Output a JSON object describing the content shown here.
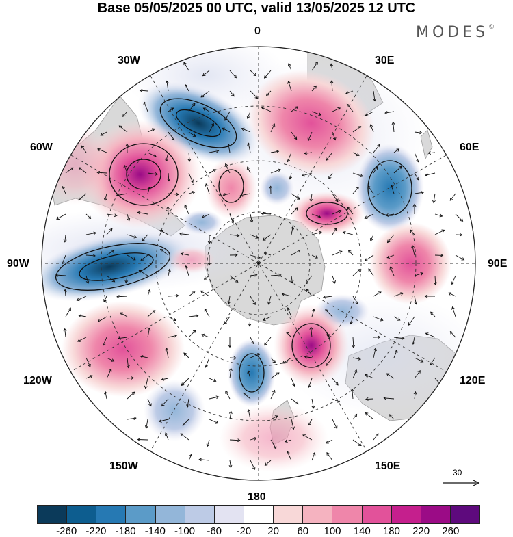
{
  "title": "Base 05/05/2025 00 UTC, valid 13/05/2025 12 UTC",
  "brand": "MODES",
  "brand_mark": "©",
  "labels": {
    "top": "0",
    "bottom": "180",
    "left": "90W",
    "right": "90E",
    "tl30": "30W",
    "tr30": "30E",
    "tl60": "60W",
    "tr60": "60E",
    "bl120": "120W",
    "br120": "120E",
    "bl150": "150W",
    "br150": "150E"
  },
  "reference_vector": "30",
  "colorbar": {
    "colors": [
      "#0b3a5a",
      "#0d5d8f",
      "#2679b3",
      "#5b9bc8",
      "#93b6d9",
      "#bdcbe6",
      "#e3e3f2",
      "#ffffff",
      "#f8d8d8",
      "#f5b3c0",
      "#ef86aa",
      "#e2529a",
      "#c51f8d",
      "#9b0b86",
      "#5e0a7d"
    ],
    "ticks": [
      "-260",
      "-220",
      "-180",
      "-140",
      "-100",
      "-60",
      "-20",
      "20",
      "60",
      "100",
      "140",
      "180",
      "220",
      "260"
    ]
  },
  "colors": {
    "land": "#d9d9d9",
    "grid": "#333333"
  }
}
